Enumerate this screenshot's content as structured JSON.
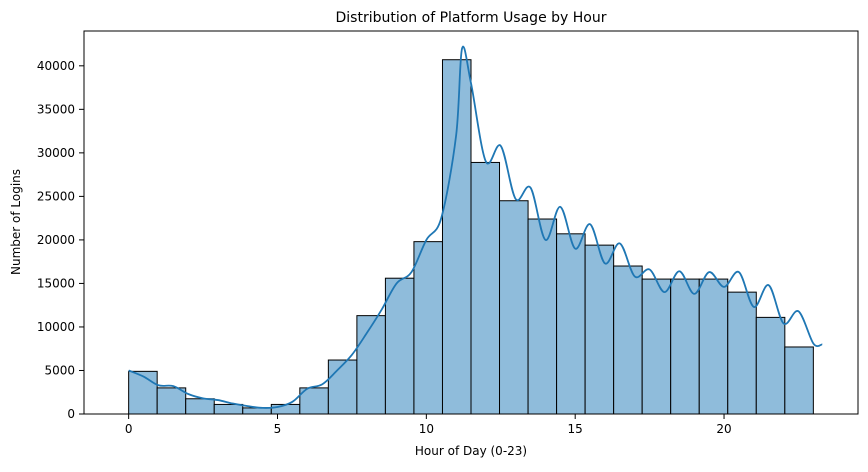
{
  "chart_data": {
    "type": "bar",
    "title": "Distribution of Platform Usage by Hour",
    "xlabel": "Hour of Day (0-23)",
    "ylabel": "Number of Logins",
    "xlim": [
      -1.5,
      24.5
    ],
    "ylim": [
      0,
      44000
    ],
    "x_ticks": [
      0,
      5,
      10,
      15,
      20
    ],
    "y_ticks": [
      0,
      5000,
      10000,
      15000,
      20000,
      25000,
      30000,
      35000,
      40000
    ],
    "grid": false,
    "legend": "none",
    "bin_edges": [
      0,
      0.958,
      1.917,
      2.875,
      3.833,
      4.792,
      5.75,
      6.708,
      7.667,
      8.625,
      9.583,
      10.542,
      11.5,
      12.458,
      13.417,
      14.375,
      15.333,
      16.292,
      17.25,
      18.208,
      19.167,
      20.125,
      21.083,
      22.042,
      23
    ],
    "values": [
      4900,
      3000,
      1750,
      1100,
      700,
      1100,
      3000,
      6200,
      11300,
      15600,
      19800,
      40700,
      28900,
      24500,
      22400,
      20700,
      19400,
      17000,
      15500,
      15500,
      15500,
      14000,
      11100,
      7700
    ],
    "kde": {
      "x": [
        0,
        0.5,
        1,
        1.5,
        2,
        2.5,
        3,
        3.5,
        4,
        4.5,
        5,
        5.5,
        6,
        6.5,
        7,
        7.5,
        8,
        8.5,
        9,
        9.5,
        10,
        10.5,
        11,
        11.2,
        11.5,
        12,
        12.5,
        13,
        13.5,
        14,
        14.5,
        15,
        15.5,
        16,
        16.5,
        17,
        17.5,
        18,
        18.5,
        19,
        19.5,
        20,
        20.5,
        21,
        21.5,
        22,
        22.5,
        23,
        23.3
      ],
      "y": [
        5000,
        4300,
        3300,
        3200,
        2300,
        1800,
        1600,
        1200,
        900,
        700,
        800,
        1400,
        2900,
        3400,
        5000,
        6800,
        9300,
        12000,
        15000,
        16300,
        20000,
        22500,
        32000,
        42000,
        38000,
        29000,
        30800,
        24700,
        26000,
        20000,
        23800,
        19000,
        21800,
        17300,
        19600,
        15800,
        16600,
        14000,
        16400,
        13800,
        16300,
        14600,
        16300,
        12300,
        14800,
        10400,
        11800,
        8100,
        8000
      ]
    },
    "colors": {
      "bar_fill": "#8FBCDB",
      "bar_edge": "#000000",
      "kde_line": "#1F77B4",
      "axis": "#000000"
    }
  }
}
